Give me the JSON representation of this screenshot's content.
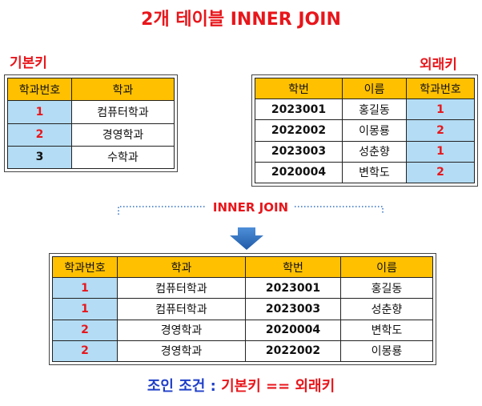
{
  "title": "2개 테이블 INNER JOIN",
  "primary_label": "기본키",
  "foreign_label": "외래키",
  "join_label": "INNER JOIN",
  "condition": {
    "part1": "조인 조건 : ",
    "part2": "기본키 == 외래키"
  },
  "table_dept": {
    "headers": [
      "학과번호",
      "학과"
    ],
    "rows": [
      [
        "1",
        "컴퓨터학과"
      ],
      [
        "2",
        "경영학과"
      ],
      [
        "3",
        "수학과"
      ]
    ]
  },
  "table_student": {
    "headers": [
      "학번",
      "이름",
      "학과번호"
    ],
    "rows": [
      [
        "2023001",
        "홍길동",
        "1"
      ],
      [
        "2022002",
        "이몽룡",
        "2"
      ],
      [
        "2023003",
        "성춘향",
        "1"
      ],
      [
        "2020004",
        "변학도",
        "2"
      ]
    ]
  },
  "table_result": {
    "headers": [
      "학과번호",
      "학과",
      "학번",
      "이름"
    ],
    "rows": [
      [
        "1",
        "컴퓨터학과",
        "2023001",
        "홍길동"
      ],
      [
        "1",
        "컴퓨터학과",
        "2023003",
        "성춘향"
      ],
      [
        "2",
        "경영학과",
        "2020004",
        "변학도"
      ],
      [
        "2",
        "경영학과",
        "2022002",
        "이몽룡"
      ]
    ]
  },
  "colors": {
    "header_bg": "#ffc000",
    "key_bg": "#b4dcf4",
    "accent_red": "#e8161b",
    "accent_blue": "#1f3fc8",
    "arrow": "#2e6fc0"
  }
}
